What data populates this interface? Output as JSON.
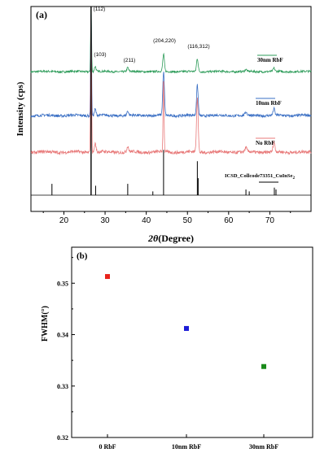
{
  "panel_a": {
    "panel_label": "(a)",
    "ylabel": "Intensity (cps)",
    "xlabel_symbol": "2θ",
    "xlabel_text": "(Degree)",
    "x_ticks": [
      "20",
      "30",
      "40",
      "50",
      "60",
      "70"
    ],
    "peak_labels": [
      "(112)",
      "(103)",
      "(211)",
      "(204,220)",
      "(116,312)"
    ],
    "legend": {
      "s30": "30nm RbF",
      "s10": "10nm RbF",
      "s0": "No RbF",
      "ref": "ICSD_Collcode73351_CuInSe",
      "ref_sub": "2"
    },
    "colors": {
      "s30": "#2e9c5a",
      "s10": "#3a6fc4",
      "s0": "#e87a7a",
      "ref": "#000000"
    }
  },
  "panel_b": {
    "panel_label": "(b)",
    "ylabel": "FWHM(°)",
    "y_ticks": [
      "0.32",
      "0.33",
      "0.34",
      "0.35"
    ],
    "x_ticks": [
      "0 RbF",
      "10nm RbF",
      "30nm RbF"
    ]
  },
  "chart_data": [
    {
      "type": "line",
      "xlabel": "2θ(Degree)",
      "ylabel": "Intensity (cps)",
      "xlim": [
        12,
        80
      ],
      "grid": false,
      "legend_placement": "right of each trace",
      "peaks": [
        {
          "label": "(112)",
          "x": 26.6
        },
        {
          "label": "(103)",
          "x": 27.6
        },
        {
          "label": "(211)",
          "x": 35.5
        },
        {
          "label": "(204,220)",
          "x": 44.2
        },
        {
          "label": "(116,312)",
          "x": 52.4
        }
      ],
      "series": [
        {
          "name": "30nm RbF",
          "color": "#2e9c5a",
          "peak_heights": [
            {
              "x": 26.6,
              "y": 100
            },
            {
              "x": 27.6,
              "y": 8
            },
            {
              "x": 35.5,
              "y": 6
            },
            {
              "x": 44.2,
              "y": 26
            },
            {
              "x": 52.4,
              "y": 20
            },
            {
              "x": 64.2,
              "y": 3
            },
            {
              "x": 71.0,
              "y": 5
            }
          ]
        },
        {
          "name": "10nm RbF",
          "color": "#3a6fc4",
          "peak_heights": [
            {
              "x": 26.6,
              "y": 100
            },
            {
              "x": 27.6,
              "y": 6
            },
            {
              "x": 35.5,
              "y": 4
            },
            {
              "x": 44.2,
              "y": 40
            },
            {
              "x": 52.4,
              "y": 28
            },
            {
              "x": 64.2,
              "y": 3
            },
            {
              "x": 71.0,
              "y": 6
            }
          ]
        },
        {
          "name": "No RbF",
          "color": "#e87a7a",
          "peak_heights": [
            {
              "x": 26.6,
              "y": 100
            },
            {
              "x": 27.6,
              "y": 6
            },
            {
              "x": 35.5,
              "y": 4
            },
            {
              "x": 44.2,
              "y": 52
            },
            {
              "x": 52.4,
              "y": 38
            },
            {
              "x": 64.2,
              "y": 3
            },
            {
              "x": 71.0,
              "y": 7
            }
          ]
        },
        {
          "name": "ICSD_Collcode73351_CuInSe2",
          "color": "#000000",
          "type": "stick",
          "sticks": [
            {
              "x": 17.1,
              "y": 6
            },
            {
              "x": 26.6,
              "y": 100
            },
            {
              "x": 27.7,
              "y": 5
            },
            {
              "x": 35.5,
              "y": 6
            },
            {
              "x": 41.6,
              "y": 2
            },
            {
              "x": 44.2,
              "y": 24
            },
            {
              "x": 52.4,
              "y": 18
            },
            {
              "x": 52.6,
              "y": 9
            },
            {
              "x": 64.2,
              "y": 3
            },
            {
              "x": 65.0,
              "y": 2
            },
            {
              "x": 71.1,
              "y": 4
            },
            {
              "x": 71.5,
              "y": 3
            }
          ]
        }
      ]
    },
    {
      "type": "scatter",
      "xlabel": "",
      "ylabel": "FWHM(°)",
      "ylim": [
        0.32,
        0.357
      ],
      "categories": [
        "0 RbF",
        "10nm RbF",
        "30nm RbF"
      ],
      "values": [
        0.3513,
        0.3412,
        0.3338
      ],
      "colors": [
        "#e8231b",
        "#1c1cd6",
        "#1a8a1a"
      ],
      "grid": false
    }
  ]
}
